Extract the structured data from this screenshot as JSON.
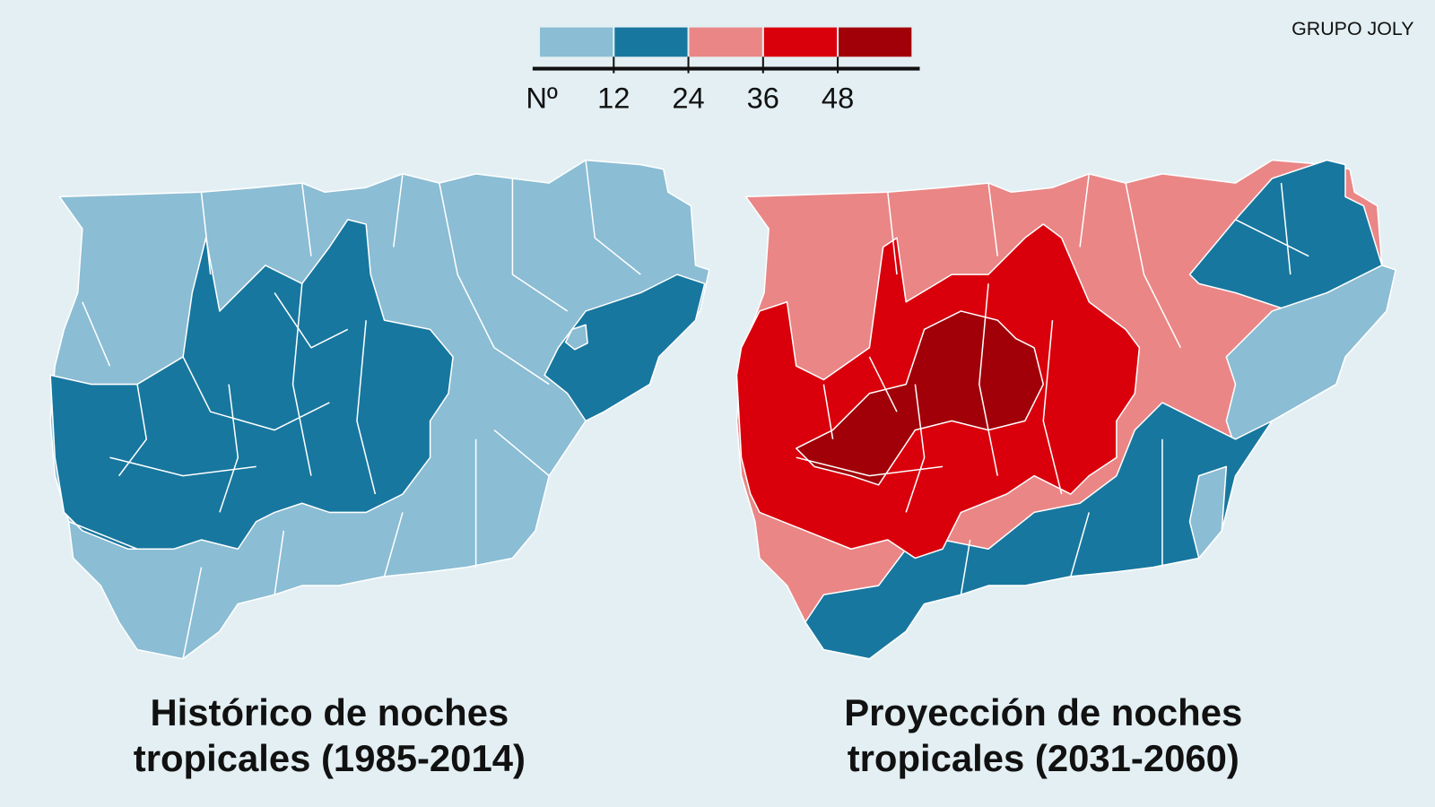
{
  "brand": "GRUPO JOLY",
  "legend": {
    "unit_label": "Nº",
    "classes": [
      {
        "color": "#8bbdd4"
      },
      {
        "color": "#17779f"
      },
      {
        "color": "#ea8686"
      },
      {
        "color": "#d9000c"
      },
      {
        "color": "#a10008"
      }
    ],
    "breaks": [
      "12",
      "24",
      "36",
      "48"
    ]
  },
  "maps": [
    {
      "title_lines": [
        "Histórico de noches",
        "tropicales (1985-2014)"
      ]
    },
    {
      "title_lines": [
        "Proyección de noches",
        "tropicales (2031-2060)"
      ]
    }
  ]
}
